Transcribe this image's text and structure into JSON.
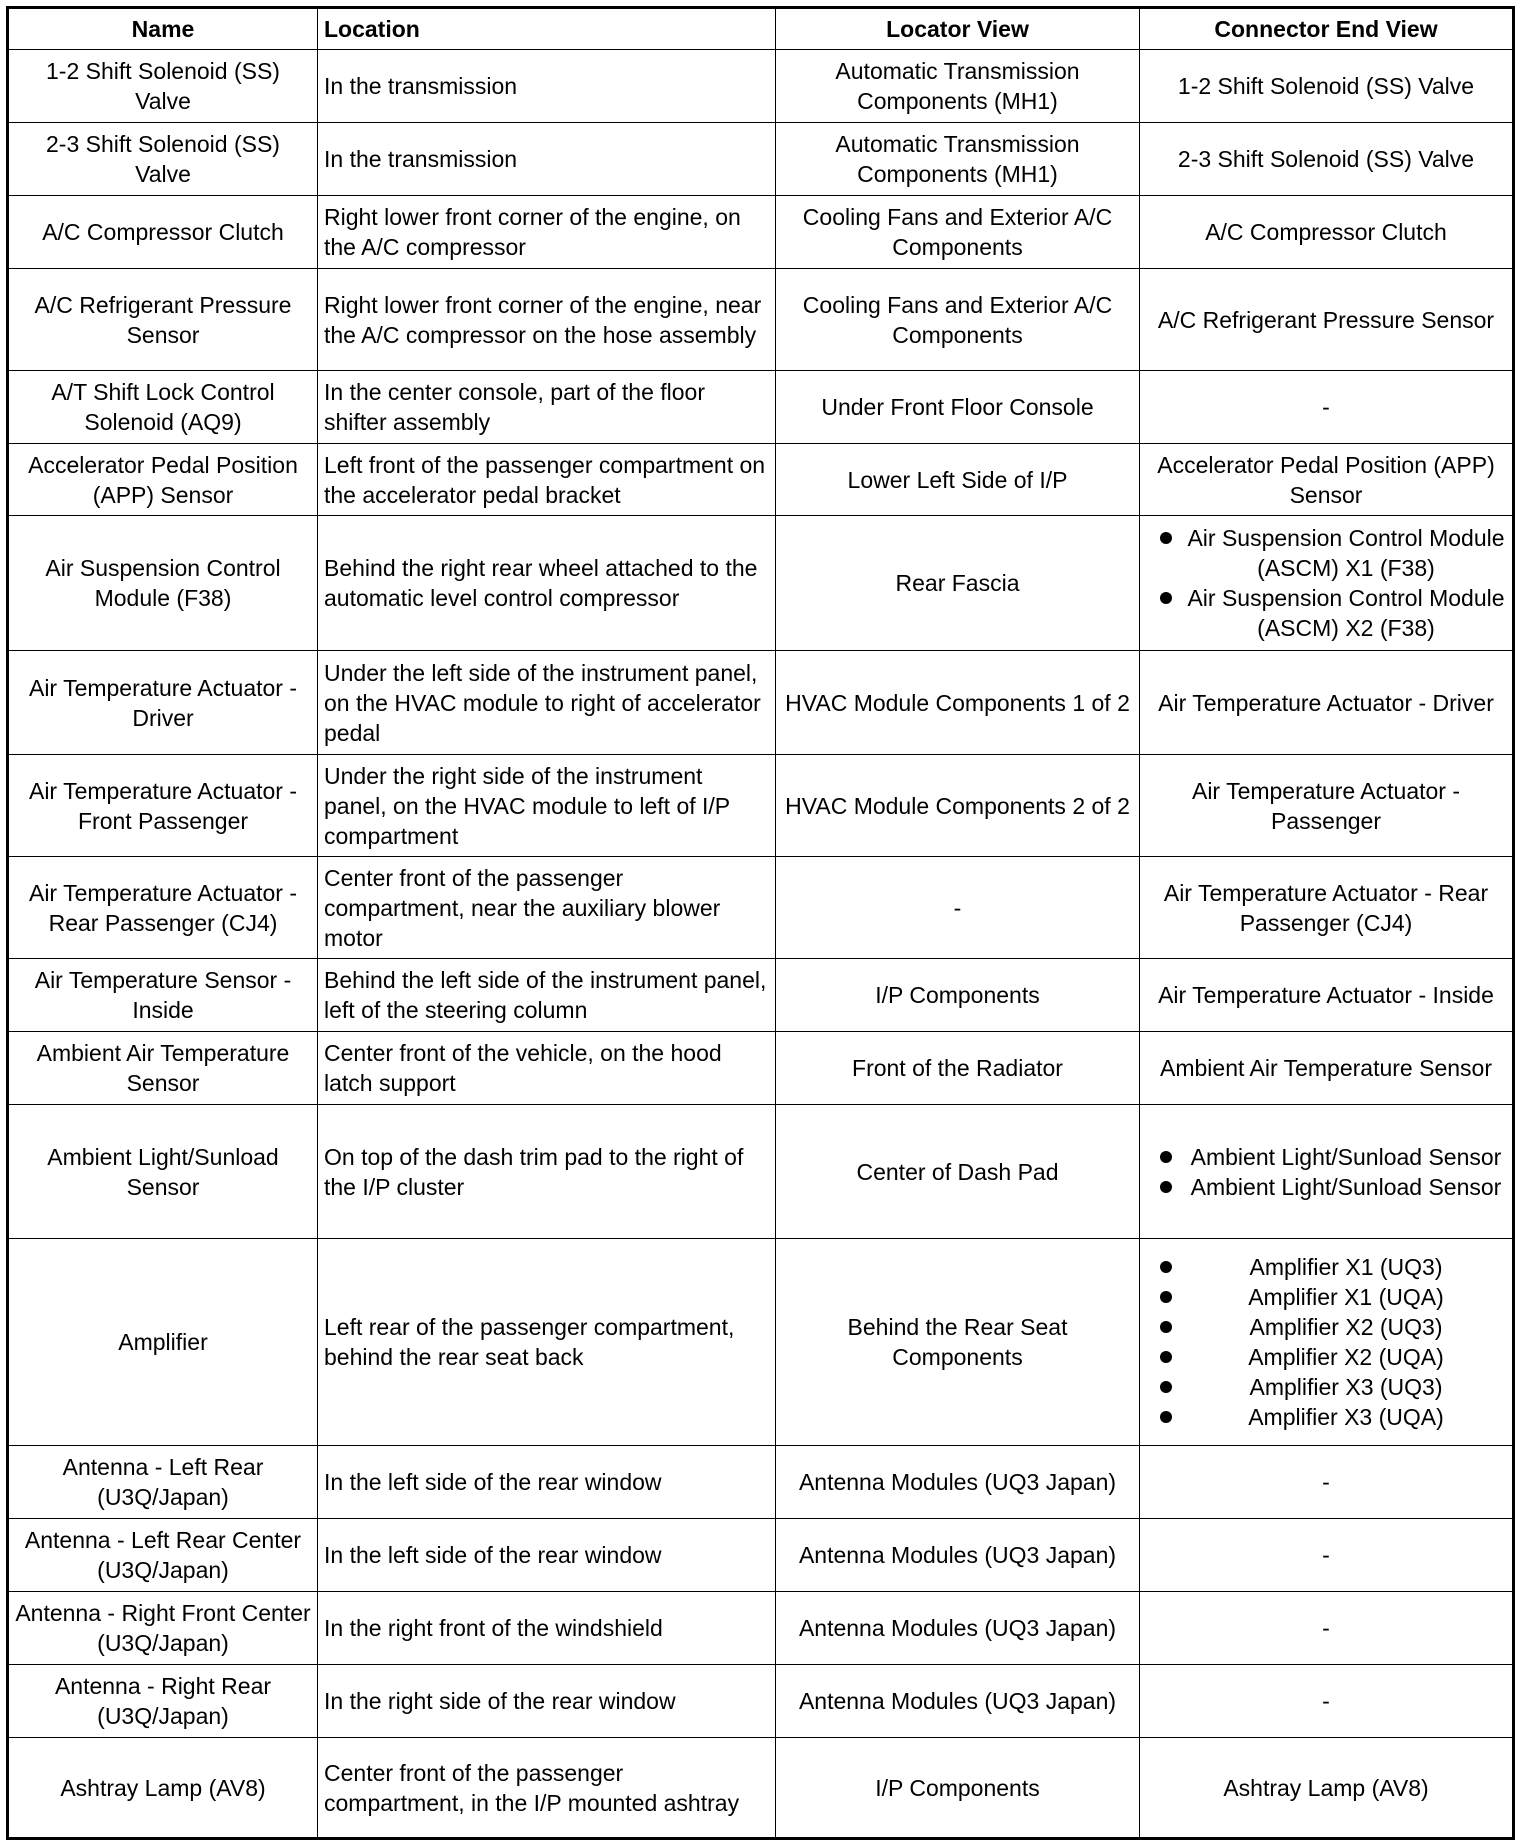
{
  "table": {
    "header": [
      "Name",
      "Location",
      "Locator View",
      "Connector End View"
    ],
    "rows": [
      [
        "1-2 Shift Solenoid (SS) Valve",
        "In the transmission",
        "Automatic Transmission Components (MH1)",
        "1-2 Shift Solenoid (SS) Valve"
      ],
      [
        "2-3 Shift Solenoid (SS) Valve",
        "In the transmission",
        "Automatic Transmission Components (MH1)",
        "2-3 Shift Solenoid (SS) Valve"
      ],
      [
        "A/C Compressor Clutch",
        "Right lower front corner of the engine, on the A/C compressor",
        "Cooling Fans and Exterior A/C Components",
        "A/C Compressor Clutch"
      ],
      [
        "A/C Refrigerant Pressure Sensor",
        "Right lower front corner of the engine, near the A/C compressor on the hose assembly",
        "Cooling Fans and Exterior A/C Components",
        "A/C Refrigerant Pressure Sensor"
      ],
      [
        "A/T Shift Lock Control Solenoid (AQ9)",
        "In the center console, part of the floor shifter assembly",
        "Under Front Floor Console",
        "-"
      ],
      [
        "Accelerator Pedal Position (APP) Sensor",
        "Left front of the passenger compartment on the accelerator pedal bracket",
        "Lower Left Side of I/P",
        "Accelerator Pedal Position (APP) Sensor"
      ],
      [
        "Air Suspension Control Module (F38)",
        "Behind the right rear wheel attached to the automatic level control compressor",
        "Rear Fascia",
        [
          "Air Suspension Control Module (ASCM) X1 (F38)",
          "Air Suspension Control Module (ASCM) X2 (F38)"
        ]
      ],
      [
        "Air Temperature Actuator - Driver",
        "Under the left side of the instrument panel, on the HVAC module to right of accelerator pedal",
        "HVAC Module Components 1 of 2",
        "Air Temperature Actuator - Driver"
      ],
      [
        "Air Temperature Actuator - Front Passenger",
        "Under the right side of the instrument panel, on the HVAC module to left of I/P compartment",
        "HVAC Module Components 2 of 2",
        "Air Temperature Actuator - Passenger"
      ],
      [
        "Air Temperature Actuator - Rear Passenger (CJ4)",
        "Center front of the passenger compartment, near the auxiliary blower motor",
        "-",
        "Air Temperature Actuator - Rear Passenger (CJ4)"
      ],
      [
        "Air Temperature Sensor - Inside",
        "Behind the left side of the instrument panel, left of the steering column",
        "I/P Components",
        "Air Temperature Actuator - Inside"
      ],
      [
        "Ambient Air Temperature Sensor",
        "Center front of the vehicle, on the hood latch support",
        "Front of the Radiator",
        "Ambient Air Temperature Sensor"
      ],
      [
        "Ambient Light/Sunload Sensor",
        "On top of the dash trim pad to the right of the I/P cluster",
        "Center of Dash Pad",
        [
          "Ambient Light/Sunload Sensor",
          "Ambient Light/Sunload Sensor"
        ]
      ],
      [
        "Amplifier",
        "Left rear of the passenger compartment, behind the rear seat back",
        "Behind the Rear Seat Components",
        [
          "Amplifier X1 (UQ3)",
          "Amplifier X1 (UQA)",
          "Amplifier X2 (UQ3)",
          "Amplifier X2 (UQA)",
          "Amplifier X3 (UQ3)",
          "Amplifier X3 (UQA)"
        ]
      ],
      [
        "Antenna - Left Rear (U3Q/Japan)",
        "In the left side of the rear window",
        "Antenna Modules (UQ3 Japan)",
        "-"
      ],
      [
        "Antenna - Left Rear Center (U3Q/Japan)",
        "In the left side of the rear window",
        "Antenna Modules (UQ3 Japan)",
        "-"
      ],
      [
        "Antenna - Right Front Center (U3Q/Japan)",
        "In the right front of the windshield",
        "Antenna Modules (UQ3 Japan)",
        "-"
      ],
      [
        "Antenna - Right Rear (U3Q/Japan)",
        "In the right side of the rear window",
        "Antenna Modules (UQ3 Japan)",
        "-"
      ],
      [
        "Ashtray Lamp (AV8)",
        "Center front of the passenger compartment, in the I/P mounted ashtray",
        "I/P Components",
        "Ashtray Lamp (AV8)"
      ]
    ]
  }
}
